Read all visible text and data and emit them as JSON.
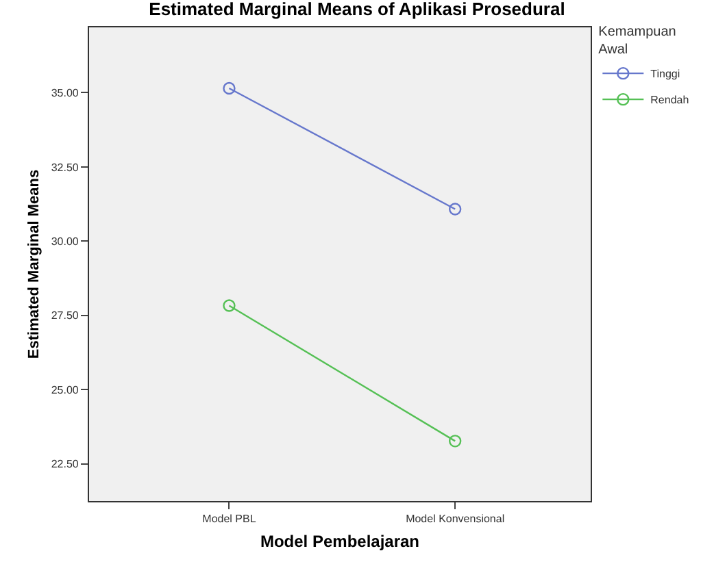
{
  "chart_data": {
    "type": "line",
    "title": "Estimated Marginal Means of Aplikasi Prosedural",
    "xlabel": "Model Pembelajaran",
    "ylabel": "Estimated Marginal Means",
    "legend_title": "Kemampuan Awal",
    "categories": [
      "Model PBL",
      "Model Konvensional"
    ],
    "series": [
      {
        "name": "Tinggi",
        "color": "#6677cc",
        "values": [
          35.15,
          31.08
        ]
      },
      {
        "name": "Rendah",
        "color": "#55c055",
        "values": [
          27.83,
          23.27
        ]
      }
    ],
    "ylim": [
      21.25,
      37.2
    ],
    "yticks": [
      {
        "value": 22.5,
        "label": "22.50"
      },
      {
        "value": 25,
        "label": "25.00"
      },
      {
        "value": 27.5,
        "label": "27.50"
      },
      {
        "value": 30,
        "label": "30.00"
      },
      {
        "value": 32.5,
        "label": "32.50"
      },
      {
        "value": 35,
        "label": "35.00"
      }
    ],
    "grid": false,
    "legend": "top right",
    "marker": "circle",
    "line_style": "solid"
  }
}
